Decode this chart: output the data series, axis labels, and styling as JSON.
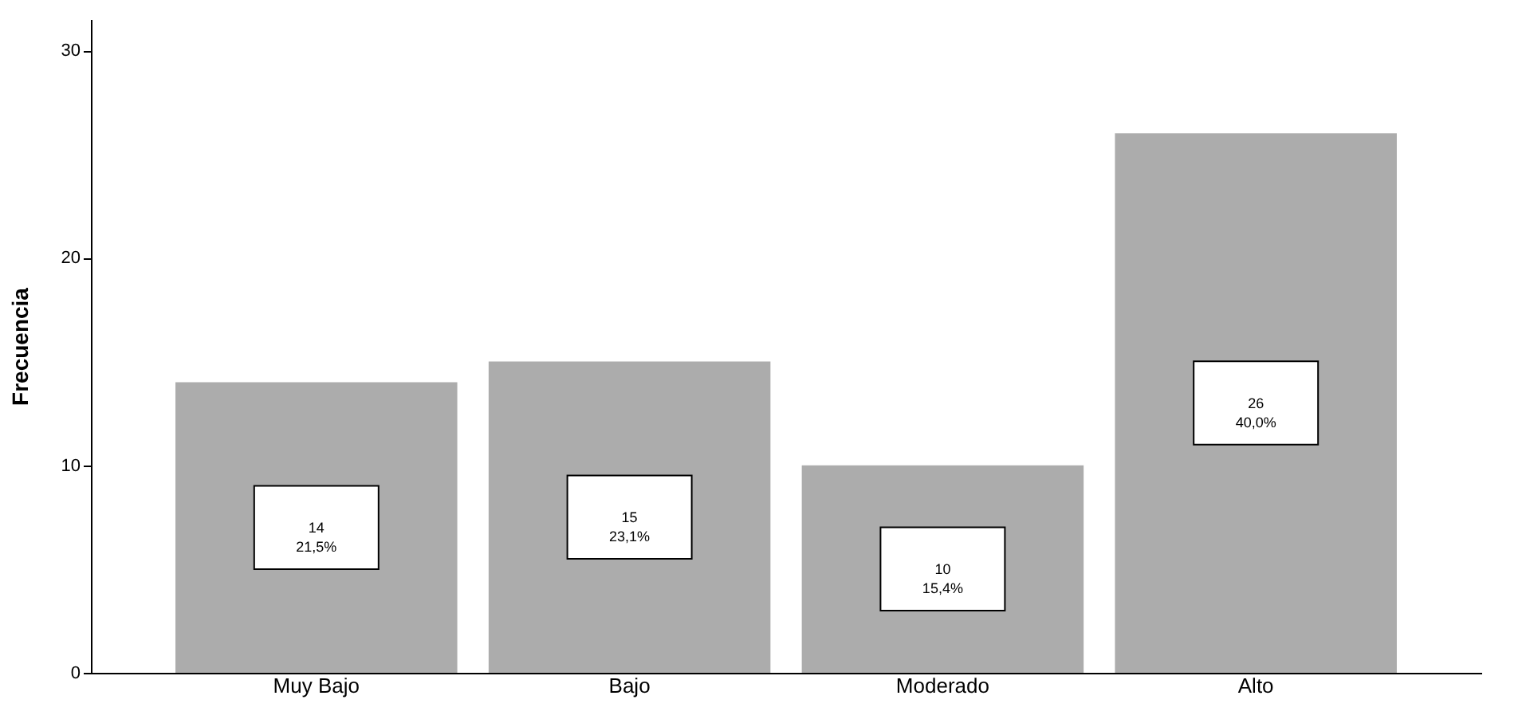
{
  "chart_data": {
    "type": "bar",
    "ylabel": "Frecuencia",
    "categories": [
      "Muy Bajo",
      "Bajo",
      "Moderado",
      "Alto"
    ],
    "values": [
      14,
      15,
      10,
      26
    ],
    "color": "#acacac",
    "value_labels": [
      "14\n21,5%",
      "15\n23,1%",
      "10\n15,4%",
      "26\n40,0%"
    ],
    "ylim": [
      0,
      31.5
    ],
    "yticks": [
      0,
      10,
      20,
      30
    ],
    "grid": false
  }
}
